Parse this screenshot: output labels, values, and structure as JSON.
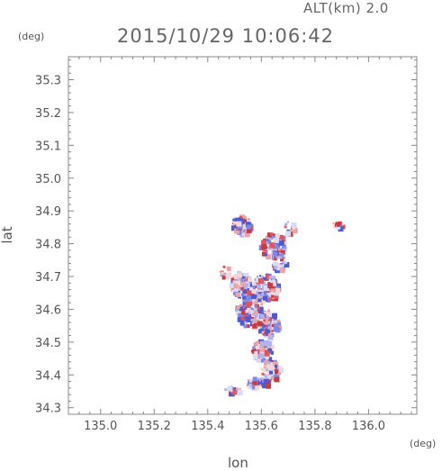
{
  "header": {
    "altitude_label": "ALT(km) 2.0",
    "timestamp": "2015/10/29 10:06:42"
  },
  "axes": {
    "x_unit": "(deg)",
    "y_unit": "(deg)",
    "x_label": "lon",
    "y_label": "lat",
    "x_ticks": [
      "135.0",
      "135.2",
      "135.4",
      "135.6",
      "135.8",
      "136.0"
    ],
    "y_ticks": [
      "34.3",
      "34.4",
      "34.5",
      "34.6",
      "34.7",
      "34.8",
      "34.9",
      "35.0",
      "35.1",
      "35.2",
      "35.3"
    ],
    "x_range": [
      134.88,
      136.18
    ],
    "y_range": [
      34.28,
      35.37
    ]
  },
  "colors": {
    "positive": "#e0555a",
    "negative": "#4a5bd8",
    "frame": "#888888"
  }
}
